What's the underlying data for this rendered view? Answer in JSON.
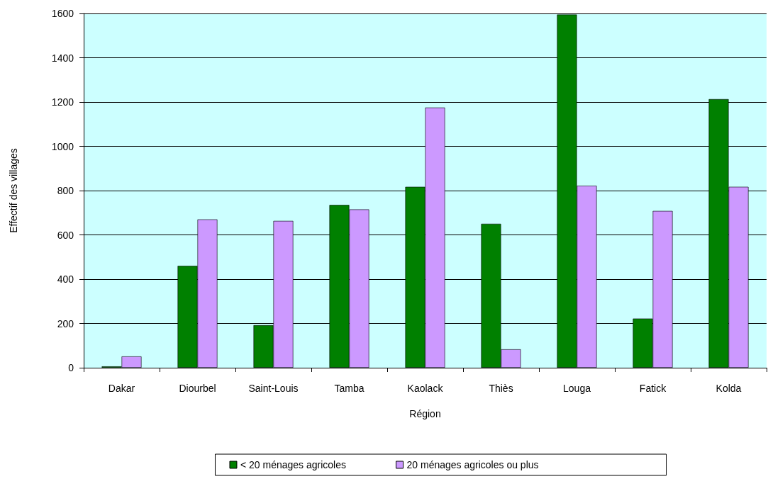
{
  "chart_data": {
    "type": "bar",
    "xlabel": "Région",
    "ylabel": "Effectif des villages",
    "categories": [
      "Dakar",
      "Diourbel",
      "Saint-Louis",
      "Tamba",
      "Kaolack",
      "Thiès",
      "Louga",
      "Fatick",
      "Kolda"
    ],
    "series": [
      {
        "name": "< 20 ménages agricoles",
        "color": "#008000",
        "values": [
          6,
          460,
          192,
          735,
          817,
          650,
          1595,
          222,
          1213
        ]
      },
      {
        "name": "20 ménages agricoles ou plus",
        "color": "#cc99ff",
        "values": [
          51,
          670,
          663,
          715,
          1175,
          83,
          822,
          708,
          817
        ]
      }
    ],
    "ylim": [
      0,
      1600
    ],
    "yticks": [
      0,
      200,
      400,
      600,
      800,
      1000,
      1200,
      1400,
      1600
    ],
    "grid": "y",
    "legend": "bottom"
  }
}
